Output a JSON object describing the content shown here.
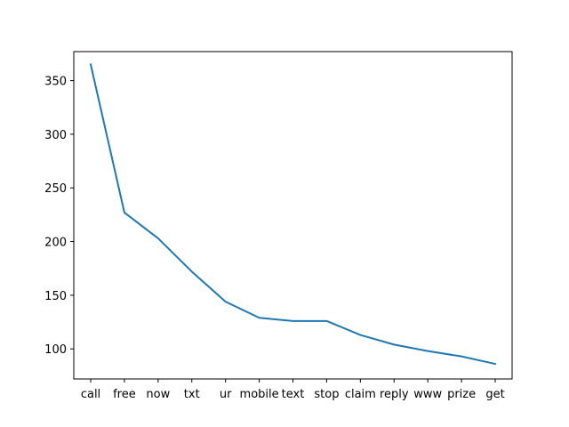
{
  "chart_data": {
    "type": "line",
    "title": "",
    "xlabel": "",
    "ylabel": "",
    "categories": [
      "call",
      "free",
      "now",
      "txt",
      "ur",
      "mobile",
      "text",
      "stop",
      "claim",
      "reply",
      "www",
      "prize",
      "get"
    ],
    "series": [
      {
        "name": "",
        "values": [
          365,
          227,
          203,
          172,
          144,
          129,
          126,
          126,
          113,
          104,
          98,
          93,
          86
        ]
      }
    ],
    "ylim": [
      72,
      377
    ],
    "yticks": [
      100,
      150,
      200,
      250,
      300,
      350
    ],
    "grid": false,
    "legend": "none",
    "line_color": "#1f77b4"
  }
}
